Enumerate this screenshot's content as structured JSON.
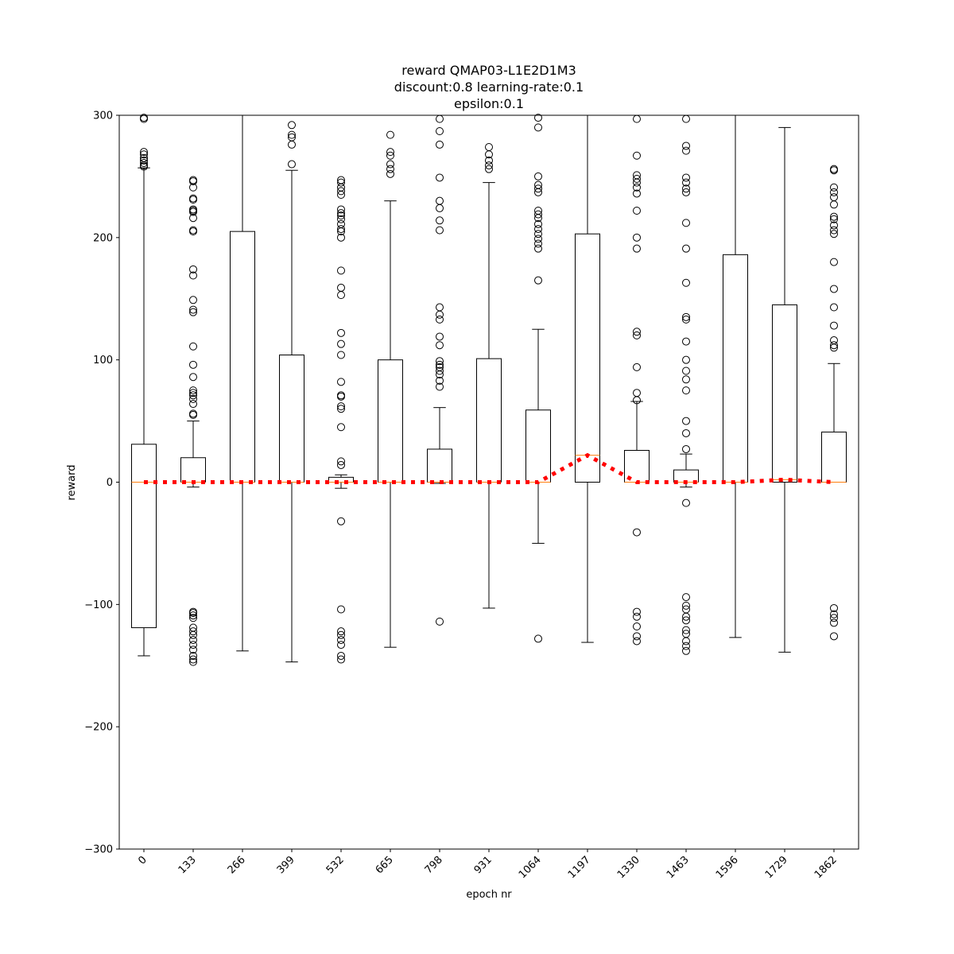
{
  "chart_data": {
    "type": "box",
    "title": [
      "reward QMAP03-L1E2D1M3",
      "discount:0.8 learning-rate:0.1",
      "epsilon:0.1"
    ],
    "xlabel": "epoch nr",
    "ylabel": "reward",
    "categories": [
      "0",
      "133",
      "266",
      "399",
      "532",
      "665",
      "798",
      "931",
      "1064",
      "1197",
      "1330",
      "1463",
      "1596",
      "1729",
      "1862"
    ],
    "ylim": [
      -300,
      300
    ],
    "yticks": [
      {
        "value": -300,
        "label": "−300"
      },
      {
        "value": -200,
        "label": "−200"
      },
      {
        "value": -100,
        "label": "−100"
      },
      0,
      100,
      200,
      300
    ],
    "median_color": "#ff7f0e",
    "median_line_color": "#ff0000",
    "boxes": [
      {
        "whislo": -142,
        "q1": -119,
        "med": 0,
        "q3": 31,
        "whishi": 257,
        "fliers": [
          298,
          297,
          270,
          268,
          265,
          263,
          261,
          259,
          258
        ]
      },
      {
        "whislo": -4,
        "q1": 0,
        "med": 0,
        "q3": 20,
        "whishi": 50,
        "fliers": [
          247,
          246,
          241,
          232,
          231,
          223,
          222,
          221,
          216,
          206,
          205,
          174,
          169,
          149,
          141,
          139,
          111,
          96,
          86,
          75,
          73,
          71,
          68,
          64,
          56,
          55,
          -106,
          -107,
          -109,
          -111,
          -119,
          -122,
          -125,
          -129,
          -133,
          -137,
          -142,
          -145,
          -147
        ]
      },
      {
        "whislo": -138,
        "q1": 0,
        "med": 0,
        "q3": 205,
        "whishi": 300,
        "fliers": []
      },
      {
        "whislo": -147,
        "q1": 0,
        "med": 0,
        "q3": 104,
        "whishi": 255,
        "fliers": [
          292,
          284,
          282,
          276,
          260
        ]
      },
      {
        "whislo": -5,
        "q1": 0,
        "med": 0,
        "q3": 4,
        "whishi": 6,
        "fliers": [
          247,
          245,
          241,
          238,
          235,
          223,
          220,
          218,
          215,
          211,
          207,
          205,
          200,
          173,
          159,
          153,
          122,
          113,
          104,
          82,
          71,
          70,
          62,
          60,
          45,
          17,
          14,
          -32,
          -104,
          -122,
          -125,
          -129,
          -133,
          -142,
          -145
        ]
      },
      {
        "whislo": -135,
        "q1": 0,
        "med": 0,
        "q3": 100,
        "whishi": 230,
        "fliers": [
          284,
          270,
          267,
          260,
          256,
          252
        ]
      },
      {
        "whislo": -1,
        "q1": 0,
        "med": 0,
        "q3": 27,
        "whishi": 61,
        "fliers": [
          297,
          287,
          276,
          249,
          230,
          224,
          214,
          206,
          143,
          137,
          133,
          119,
          112,
          99,
          96,
          94,
          91,
          88,
          83,
          78,
          -114
        ]
      },
      {
        "whislo": -103,
        "q1": 0,
        "med": 0,
        "q3": 101,
        "whishi": 245,
        "fliers": [
          274,
          268,
          263,
          259,
          256
        ]
      },
      {
        "whislo": -50,
        "q1": 0,
        "med": 0,
        "q3": 59,
        "whishi": 125,
        "fliers": [
          298,
          290,
          250,
          243,
          240,
          237,
          222,
          219,
          216,
          211,
          207,
          203,
          199,
          195,
          191,
          165,
          -128
        ]
      },
      {
        "whislo": -131,
        "q1": 0,
        "med": 22,
        "q3": 203,
        "whishi": 300,
        "fliers": []
      },
      {
        "whislo": 0,
        "q1": 0,
        "med": 0,
        "q3": 26,
        "whishi": 66,
        "fliers": [
          297,
          267,
          251,
          248,
          245,
          241,
          236,
          222,
          200,
          191,
          123,
          120,
          94,
          73,
          67,
          -41,
          -106,
          -110,
          -118,
          -126,
          -130
        ]
      },
      {
        "whislo": -4,
        "q1": 0,
        "med": 0,
        "q3": 10,
        "whishi": 23,
        "fliers": [
          297,
          275,
          271,
          249,
          245,
          240,
          237,
          212,
          191,
          163,
          135,
          133,
          115,
          100,
          91,
          84,
          75,
          50,
          40,
          27,
          -17,
          -94,
          -101,
          -104,
          -110,
          -113,
          -121,
          -124,
          -130,
          -134,
          -138
        ]
      },
      {
        "whislo": -127,
        "q1": 0,
        "med": 0,
        "q3": 186,
        "whishi": 300,
        "fliers": []
      },
      {
        "whislo": -139,
        "q1": 0,
        "med": 2,
        "q3": 145,
        "whishi": 290,
        "fliers": []
      },
      {
        "whislo": 0,
        "q1": 0,
        "med": 0,
        "q3": 41,
        "whishi": 97,
        "fliers": [
          256,
          255,
          241,
          237,
          233,
          227,
          217,
          215,
          210,
          206,
          203,
          180,
          158,
          143,
          128,
          116,
          112,
          110,
          -103,
          -108,
          -111,
          -115,
          -126
        ]
      }
    ]
  }
}
